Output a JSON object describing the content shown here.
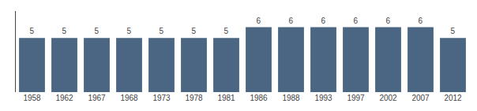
{
  "chart_data": {
    "type": "bar",
    "categories": [
      "1958",
      "1962",
      "1967",
      "1968",
      "1973",
      "1978",
      "1981",
      "1986",
      "1988",
      "1993",
      "1997",
      "2002",
      "2007",
      "2012"
    ],
    "values": [
      5,
      5,
      5,
      5,
      5,
      5,
      5,
      6,
      6,
      6,
      6,
      6,
      6,
      5
    ],
    "color": "#4a6682",
    "ylim": [
      0,
      7.5
    ],
    "yticks": [],
    "grid": false,
    "data_labels": true,
    "tick_labels": "x"
  }
}
